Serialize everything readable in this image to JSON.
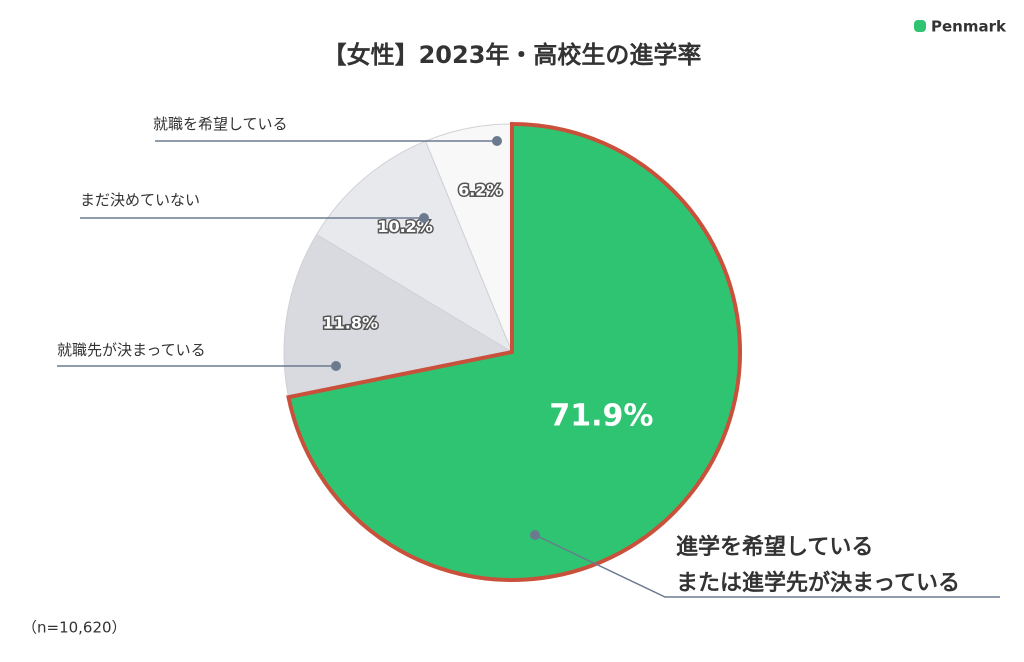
{
  "chart_data": {
    "type": "pie",
    "title": "【女性】2023年・高校生の進学率",
    "brand": "Penmark",
    "note": "（n=10,620）",
    "categories": [
      "進学を希望している\nまたは進学先が決まっている",
      "就職先が決まっている",
      "まだ決めていない",
      "就職を希望している"
    ],
    "values": [
      71.9,
      11.8,
      10.2,
      6.2
    ],
    "value_labels": [
      "71.9%",
      "11.8%",
      "10.2%",
      "6.2%"
    ],
    "colors": [
      "#2ec472",
      "#d9dae0",
      "#e8e9ed",
      "#f8f8f9"
    ],
    "highlight_stroke": "#c9503a"
  }
}
